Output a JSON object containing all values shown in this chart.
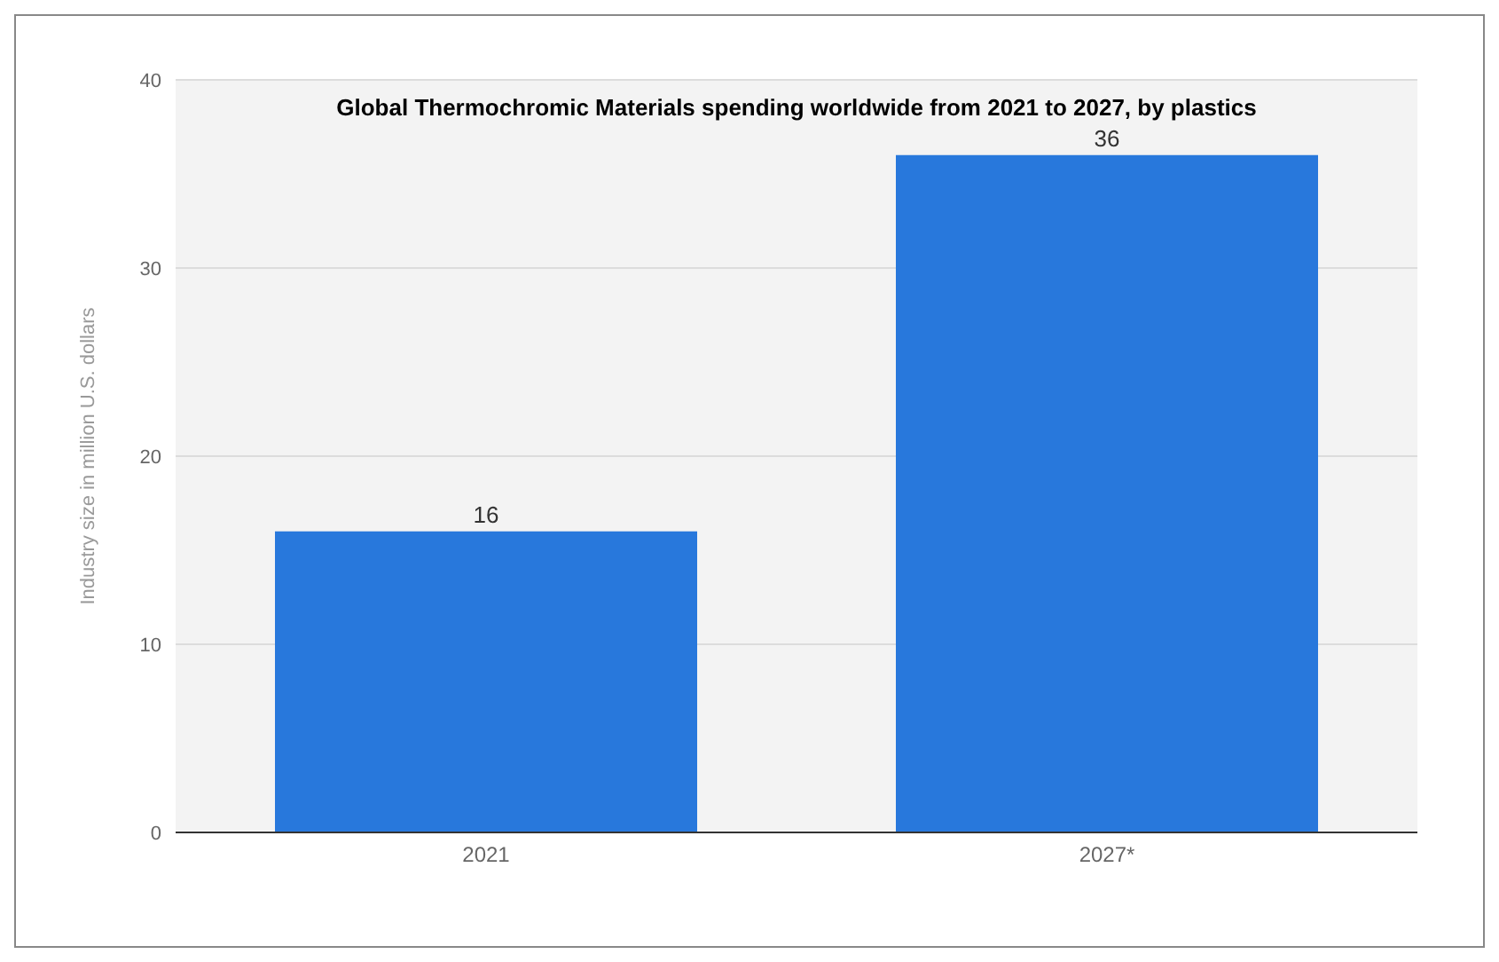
{
  "chart_data": {
    "type": "bar",
    "title": "Global Thermochromic Materials spending worldwide from 2021 to 2027, by plastics",
    "ylabel": "Industry size in million U.S. dollars",
    "categories": [
      "2021",
      "2027*"
    ],
    "values": [
      16,
      36
    ],
    "color": "#2878dc",
    "ylim": [
      0,
      40
    ],
    "yticks": [
      0,
      10,
      20,
      30,
      40
    ],
    "grid": "y",
    "data_labels": true
  }
}
